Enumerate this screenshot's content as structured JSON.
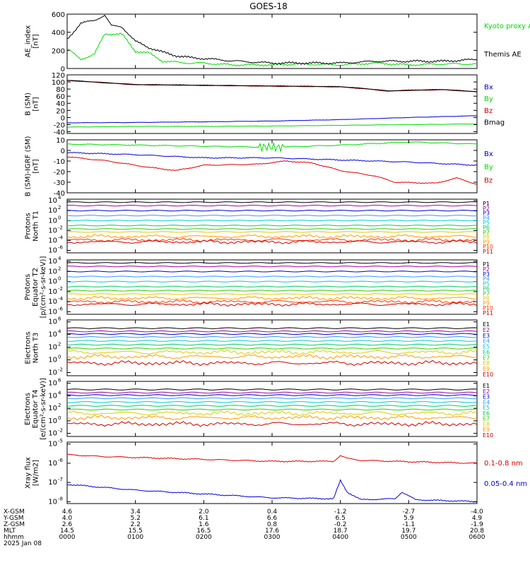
{
  "title": "GOES-18",
  "colors": {
    "black": "#000000",
    "green": "#00dd00",
    "blue": "#0000dd",
    "red": "#dd0000",
    "maroon": "#880000",
    "ch": [
      "#000000",
      "#a000a0",
      "#0000cc",
      "#3399ff",
      "#00cccc",
      "#00cc66",
      "#33cc00",
      "#ddcc00",
      "#ff9900",
      "#ff3300",
      "#cc0000"
    ]
  },
  "chart_data": [
    {
      "id": "ae",
      "type": "line",
      "ylabel": [
        "AE_index",
        "[nT]"
      ],
      "ylim": [
        0,
        600
      ],
      "yticks": [
        0,
        200,
        400,
        600
      ],
      "log": false,
      "series": [
        {
          "name": "Kyoto proxy AE",
          "color": "#00dd00",
          "x": [
            0,
            0.2,
            0.4,
            0.55,
            0.8,
            1.0,
            1.2,
            1.4,
            1.6,
            1.8,
            2.0,
            2.4,
            3.0,
            3.4,
            4.0,
            4.5,
            5.0,
            5.5,
            6.0
          ],
          "y": [
            220,
            100,
            160,
            380,
            380,
            190,
            170,
            80,
            70,
            60,
            60,
            40,
            40,
            50,
            40,
            60,
            40,
            50,
            50
          ]
        },
        {
          "name": "Themis AE",
          "color": "#000000",
          "x": [
            0,
            0.2,
            0.4,
            0.55,
            0.65,
            0.8,
            1.0,
            1.2,
            1.4,
            1.6,
            1.8,
            2.0,
            2.5,
            3.0,
            3.5,
            4.0,
            4.5,
            5.0,
            5.5,
            6.0
          ],
          "y": [
            320,
            500,
            530,
            590,
            470,
            460,
            300,
            230,
            180,
            140,
            120,
            110,
            80,
            60,
            60,
            60,
            80,
            80,
            80,
            100
          ]
        }
      ]
    },
    {
      "id": "bsm",
      "type": "line",
      "ylabel": [
        "B (SM)",
        "[nT]"
      ],
      "ylim": [
        -45,
        120
      ],
      "yticks": [
        -40,
        -20,
        0,
        20,
        40,
        60,
        80,
        100,
        120
      ],
      "log": false,
      "series": [
        {
          "name": "Bx",
          "color": "#0000dd",
          "x": [
            0,
            1,
            2,
            3,
            4,
            5,
            6
          ],
          "y": [
            -15,
            -14,
            -12,
            -10,
            -6,
            0,
            5
          ]
        },
        {
          "name": "By",
          "color": "#00dd00",
          "x": [
            0,
            1,
            2,
            3,
            4,
            5,
            6
          ],
          "y": [
            -27,
            -25,
            -25,
            -24,
            -22,
            -20,
            -18
          ]
        },
        {
          "name": "Bz",
          "color": "#dd0000",
          "x": [
            0,
            0.5,
            1,
            2,
            3,
            4,
            4.4,
            4.7,
            5,
            5.5,
            6
          ],
          "y": [
            104,
            98,
            92,
            90,
            88,
            86,
            80,
            74,
            76,
            78,
            72
          ]
        },
        {
          "name": "Bmag",
          "color": "#000000",
          "x": [
            0,
            0.5,
            1,
            2,
            3,
            4,
            4.4,
            4.7,
            5,
            5.5,
            6
          ],
          "y": [
            105,
            99,
            93,
            91,
            89,
            87,
            81,
            75,
            77,
            79,
            73
          ]
        }
      ]
    },
    {
      "id": "bigrf",
      "type": "line",
      "ylabel": [
        "B (SM)-IGRF (SM)",
        "[nT]"
      ],
      "ylim": [
        -40,
        10
      ],
      "yticks": [
        -40,
        -30,
        -20,
        -10,
        0,
        10
      ],
      "log": false,
      "series": [
        {
          "name": "Bx",
          "color": "#0000dd",
          "x": [
            0,
            1,
            2,
            3,
            4,
            5,
            6
          ],
          "y": [
            -2,
            -4,
            -7,
            -7,
            -9,
            -11,
            -14
          ]
        },
        {
          "name": "By",
          "color": "#00dd00",
          "x": [
            0,
            1,
            2,
            3,
            4,
            5,
            6
          ],
          "y": [
            6,
            5,
            4,
            3,
            5,
            8,
            6
          ]
        },
        {
          "name": "Bz",
          "color": "#dd0000",
          "x": [
            0,
            0.6,
            1.2,
            1.6,
            2.0,
            2.8,
            3.2,
            3.6,
            4.0,
            4.5,
            4.8,
            5.4,
            5.7,
            6.0
          ],
          "y": [
            -6,
            -10,
            -16,
            -19,
            -14,
            -13,
            -10,
            -12,
            -19,
            -24,
            -30,
            -31,
            -26,
            -32
          ]
        }
      ]
    },
    {
      "id": "pn",
      "type": "line",
      "ylabel": [
        "Protons",
        "North T1"
      ],
      "ylim": [
        -6.5,
        4.3
      ],
      "yticks_exp": [
        -6,
        -4,
        -2,
        0,
        2,
        4
      ],
      "log": true,
      "series": [
        {
          "name": "P1",
          "color": "#000000",
          "y": 3.7
        },
        {
          "name": "P2",
          "color": "#a000a0",
          "y": 3.0
        },
        {
          "name": "P3",
          "color": "#0000cc",
          "y": 2.0
        },
        {
          "name": "P4",
          "color": "#3399ff",
          "y": 1.0
        },
        {
          "name": "P5",
          "color": "#00cccc",
          "y": 0.0
        },
        {
          "name": "P6",
          "color": "#00cc66",
          "y": -1.0
        },
        {
          "name": "P7",
          "color": "#33cc00",
          "y": -1.7
        },
        {
          "name": "P8",
          "color": "#ddcc00",
          "y": -2.3
        },
        {
          "name": "P9",
          "color": "#ff9900",
          "y": -3.2
        },
        {
          "name": "P10",
          "color": "#ff3300",
          "y": -3.9
        },
        {
          "name": "P11",
          "color": "#cc0000",
          "y": -4.3
        }
      ]
    },
    {
      "id": "pe",
      "type": "line",
      "ylabel": [
        "Protons",
        "Equator T2",
        "[p/(cm²-s-sr-keV)]"
      ],
      "ylim": [
        -6.5,
        4.3
      ],
      "yticks_exp": [
        -6,
        -4,
        -2,
        0,
        2,
        4
      ],
      "log": true,
      "series": [
        {
          "name": "P1",
          "color": "#000000",
          "y": 3.7
        },
        {
          "name": "P2",
          "color": "#a000a0",
          "y": 3.0
        },
        {
          "name": "P3",
          "color": "#0000cc",
          "y": 2.0
        },
        {
          "name": "P4",
          "color": "#3399ff",
          "y": 1.0
        },
        {
          "name": "P5",
          "color": "#00cccc",
          "y": 0.0
        },
        {
          "name": "P6",
          "color": "#00cc66",
          "y": -1.0
        },
        {
          "name": "P7",
          "color": "#33cc00",
          "y": -1.8
        },
        {
          "name": "P8",
          "color": "#ddcc00",
          "y": -2.5
        },
        {
          "name": "P9",
          "color": "#ff9900",
          "y": -3.3
        },
        {
          "name": "P10",
          "color": "#ff3300",
          "y": -4.0
        },
        {
          "name": "P11",
          "color": "#cc0000",
          "y": -4.5
        }
      ]
    },
    {
      "id": "en",
      "type": "line",
      "ylabel": [
        "Electrons",
        "North T3"
      ],
      "ylim": [
        -2.5,
        6.3
      ],
      "yticks_exp": [
        -2,
        0,
        2,
        4,
        6
      ],
      "log": true,
      "series": [
        {
          "name": "E1",
          "color": "#000000",
          "y": 5.0
        },
        {
          "name": "E2",
          "color": "#a000a0",
          "y": 4.5
        },
        {
          "name": "E3",
          "color": "#0000cc",
          "y": 4.1
        },
        {
          "name": "E4",
          "color": "#3399ff",
          "y": 3.6
        },
        {
          "name": "E5",
          "color": "#00cccc",
          "y": 3.0
        },
        {
          "name": "E6",
          "color": "#00cc66",
          "y": 2.4
        },
        {
          "name": "E7",
          "color": "#33cc00",
          "y": 1.8
        },
        {
          "name": "E8",
          "color": "#ddcc00",
          "y": 1.2
        },
        {
          "name": "E9",
          "color": "#ff9900",
          "y": 0.5
        },
        {
          "name": "E10",
          "color": "#cc0000",
          "y": -0.5
        }
      ]
    },
    {
      "id": "ee",
      "type": "line",
      "ylabel": [
        "Electrons",
        "Equator T4",
        "[e/(cm²-s-sr-keV)]"
      ],
      "ylim": [
        -2.5,
        6.3
      ],
      "yticks_exp": [
        -2,
        0,
        2,
        4,
        6
      ],
      "log": true,
      "series": [
        {
          "name": "E1",
          "color": "#000000",
          "y": 5.0
        },
        {
          "name": "E2",
          "color": "#a000a0",
          "y": 4.5
        },
        {
          "name": "E3",
          "color": "#0000cc",
          "y": 4.1
        },
        {
          "name": "E4",
          "color": "#3399ff",
          "y": 3.6
        },
        {
          "name": "E5",
          "color": "#00cccc",
          "y": 3.0
        },
        {
          "name": "E6",
          "color": "#00cc66",
          "y": 2.4
        },
        {
          "name": "E7",
          "color": "#33cc00",
          "y": 1.8
        },
        {
          "name": "E8",
          "color": "#ddcc00",
          "y": 1.2
        },
        {
          "name": "E9",
          "color": "#ff9900",
          "y": 0.5
        },
        {
          "name": "E10",
          "color": "#cc0000",
          "y": -0.5
        }
      ]
    },
    {
      "id": "xray",
      "type": "line",
      "ylabel": [
        "Xray flux",
        "[W/m2]"
      ],
      "ylim": [
        -8.1,
        -4.9
      ],
      "yticks_exp": [
        -8,
        -7,
        -6,
        -5
      ],
      "log": true,
      "series": [
        {
          "name": "0.1-0.8 nm",
          "color": "#dd0000",
          "x": [
            0,
            0.5,
            1,
            2,
            3,
            3.9,
            4.0,
            4.1,
            4.3,
            5,
            6
          ],
          "y": [
            -5.55,
            -5.65,
            -5.7,
            -5.8,
            -5.9,
            -5.9,
            -5.6,
            -5.75,
            -5.85,
            -5.92,
            -6.0
          ]
        },
        {
          "name": "0.05-0.4 nm",
          "color": "#0000dd",
          "x": [
            0,
            0.5,
            1,
            2,
            3,
            3.9,
            4.0,
            4.1,
            4.3,
            4.8,
            4.9,
            5.1,
            6
          ],
          "y": [
            -7.1,
            -7.25,
            -7.4,
            -7.6,
            -7.8,
            -7.85,
            -6.9,
            -7.5,
            -7.9,
            -7.85,
            -7.5,
            -7.9,
            -8.0
          ]
        }
      ]
    }
  ],
  "xaxis": {
    "rows": [
      {
        "label": "X-GSM",
        "values": [
          "4.6",
          "3.4",
          "2.0",
          "0.4",
          "-1.2",
          "-2.7",
          "-4.0"
        ]
      },
      {
        "label": "Y-GSM",
        "values": [
          "4.0",
          "5.2",
          "6.1",
          "6.6",
          "6.5",
          "5.9",
          "4.9"
        ]
      },
      {
        "label": "Z-GSM",
        "values": [
          "2.6",
          "2.2",
          "1.6",
          "0.8",
          "-0.2",
          "-1.1",
          "-1.9"
        ]
      },
      {
        "label": "MLT",
        "values": [
          "14.5",
          "15.5",
          "16.5",
          "17.6",
          "18.7",
          "19.7",
          "20.8"
        ]
      },
      {
        "label": "hhmm",
        "values": [
          "0000",
          "0100",
          "0200",
          "0300",
          "0400",
          "0500",
          "0600"
        ]
      }
    ],
    "date": "2025 Jan 08"
  }
}
